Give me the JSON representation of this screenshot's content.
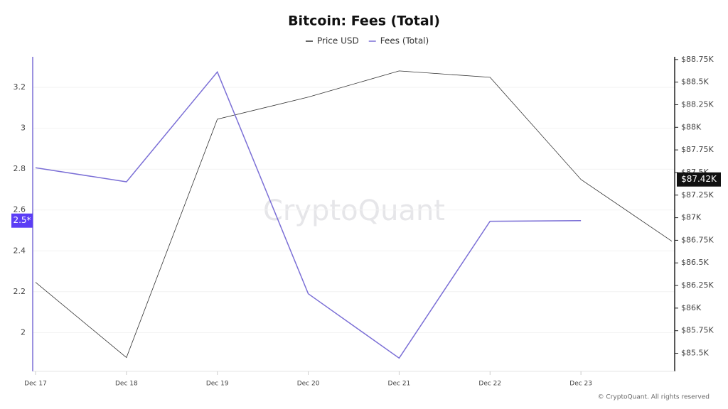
{
  "chart_data": {
    "type": "line",
    "title": "Bitcoin: Fees (Total)",
    "categories": [
      "Dec 17",
      "Dec 18",
      "Dec 19",
      "Dec 20",
      "Dec 21",
      "Dec 22",
      "Dec 23",
      null
    ],
    "series": [
      {
        "name": "Price USD",
        "color": "#333333",
        "axis": "y2",
        "values": [
          86285,
          85453,
          88090,
          88334,
          88624,
          88553,
          87423,
          86740
        ]
      },
      {
        "name": "Fees (Total)",
        "color": "#7b6fd6",
        "values": [
          2.807,
          2.738,
          3.276,
          2.19,
          1.875,
          2.545,
          2.548,
          null
        ]
      }
    ],
    "ylim": [
      1.81,
      3.35
    ],
    "yticks": [
      2,
      2.2,
      2.4,
      2.6,
      2.8,
      3,
      3.2
    ],
    "y2lim": [
      85300,
      88780
    ],
    "y2ticks": [
      {
        "value": 85500,
        "label": "$85.5K"
      },
      {
        "value": 85750,
        "label": "$85.75K"
      },
      {
        "value": 86000,
        "label": "$86K"
      },
      {
        "value": 86250,
        "label": "$86.25K"
      },
      {
        "value": 86500,
        "label": "$86.5K"
      },
      {
        "value": 86750,
        "label": "$86.75K"
      },
      {
        "value": 87000,
        "label": "$87K"
      },
      {
        "value": 87250,
        "label": "$87.25K"
      },
      {
        "value": 87500,
        "label": "$87.5K"
      },
      {
        "value": 87750,
        "label": "$87.75K"
      },
      {
        "value": 88000,
        "label": "$88K"
      },
      {
        "value": 88250,
        "label": "$88.25K"
      },
      {
        "value": 88500,
        "label": "$88.5K"
      },
      {
        "value": 88750,
        "label": "$88.75K"
      }
    ],
    "grid": true,
    "legend": "top",
    "annotations": [
      {
        "text": "2.5*",
        "series": 1,
        "index": 6
      },
      {
        "text": "$87.42K",
        "series": 0,
        "index": 6
      }
    ],
    "watermark": "CryptoQuant",
    "footer": "© CryptoQuant. All rights reserved"
  }
}
